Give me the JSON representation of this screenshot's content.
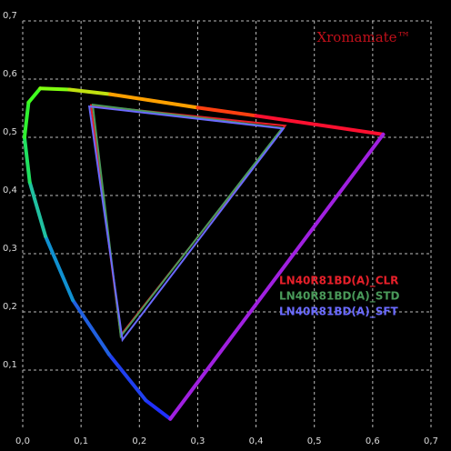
{
  "chart_data": {
    "type": "chromaticity",
    "brand": "Xromamate™",
    "xlim": [
      0,
      0.7
    ],
    "ylim": [
      0,
      0.7
    ],
    "xticks": [
      {
        "value": 0,
        "label": "0,0"
      },
      {
        "value": 0.1,
        "label": "0,1"
      },
      {
        "value": 0.2,
        "label": "0,2"
      },
      {
        "value": 0.3,
        "label": "0,3"
      },
      {
        "value": 0.4,
        "label": "0,4"
      },
      {
        "value": 0.5,
        "label": "0,5"
      },
      {
        "value": 0.6,
        "label": "0,6"
      },
      {
        "value": 0.7,
        "label": "0,7"
      }
    ],
    "yticks": [
      {
        "value": 0.1,
        "label": "0,1"
      },
      {
        "value": 0.2,
        "label": "0,2"
      },
      {
        "value": 0.3,
        "label": "0,3"
      },
      {
        "value": 0.4,
        "label": "0,4"
      },
      {
        "value": 0.5,
        "label": "0,5"
      },
      {
        "value": 0.6,
        "label": "0,6"
      },
      {
        "value": 0.7,
        "label": "0,7"
      }
    ],
    "grid": true,
    "locus": {
      "x": [
        0.253,
        0.211,
        0.148,
        0.086,
        0.039,
        0.012,
        0.003,
        0.01,
        0.03,
        0.08,
        0.15,
        0.3,
        0.4,
        0.618
      ],
      "values": [
        0.016,
        0.048,
        0.127,
        0.22,
        0.33,
        0.423,
        0.5,
        0.56,
        0.584,
        0.582,
        0.574,
        0.551,
        0.537,
        0.505
      ],
      "colors": [
        "#2a2aff",
        "#2030ff",
        "#2040f0",
        "#2060e0",
        "#1090d0",
        "#20c0a0",
        "#20e060",
        "#30f030",
        "#40ff20",
        "#80ff10",
        "#c0e010",
        "#ffa000",
        "#ff4010",
        "#ff1030"
      ],
      "closing_color": "#a020e0"
    },
    "series": [
      {
        "name": "LN40R81BD(A)_CLR",
        "color": "#e8202a",
        "x": [
          0.117,
          0.45,
          0.168
        ],
        "values": [
          0.555,
          0.52,
          0.16
        ]
      },
      {
        "name": "LN40R81BD(A)_STD",
        "color": "#4a9a5a",
        "x": [
          0.12,
          0.445,
          0.168
        ],
        "values": [
          0.556,
          0.516,
          0.158
        ]
      },
      {
        "name": "LN40R81BD(A)_SFT",
        "color": "#6a6aff",
        "x": [
          0.114,
          0.447,
          0.171
        ],
        "values": [
          0.553,
          0.515,
          0.152
        ]
      }
    ]
  }
}
